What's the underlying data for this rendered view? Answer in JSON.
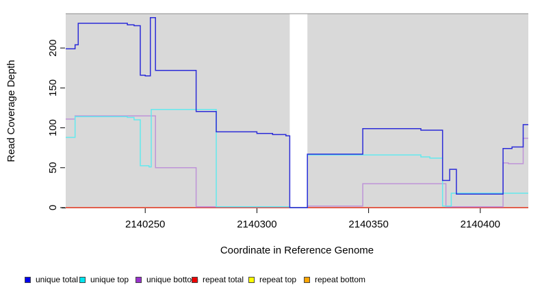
{
  "figure": {
    "background": "#FFFFFF"
  },
  "axes": {
    "x_label": "Coordinate in Reference Genome",
    "y_label": "Read Coverage Depth",
    "x_ticks": [
      {
        "value": 2140250,
        "label": "2140250"
      },
      {
        "value": 2140300,
        "label": "2140300"
      },
      {
        "value": 2140350,
        "label": "2140350"
      },
      {
        "value": 2140400,
        "label": "2140400"
      }
    ],
    "y_ticks": [
      {
        "value": 0,
        "label": "0"
      },
      {
        "value": 50,
        "label": "50"
      },
      {
        "value": 100,
        "label": "100"
      },
      {
        "value": 150,
        "label": "150"
      },
      {
        "value": 200,
        "label": "200"
      }
    ]
  },
  "chart_data": {
    "type": "line",
    "title": "",
    "xlabel": "Coordinate in Reference Genome",
    "ylabel": "Read Coverage Depth",
    "xlim": [
      2140214.4,
      2140421.5
    ],
    "ylim": [
      0,
      243
    ],
    "grid": false,
    "legend_position": "bottom",
    "plot_background": "#D9D9D9",
    "plot_top_border_color": "#8C8C8C",
    "gap_region": {
      "x_start": 2140314.7,
      "x_end": 2140322.6,
      "color": "#FFFFFF"
    },
    "line_style": "step",
    "series": [
      {
        "name": "unique total",
        "color": "#2B2BD8",
        "legend_color": "#0000EE",
        "points": [
          [
            2140214.4,
            199
          ],
          [
            2140218.6,
            199
          ],
          [
            2140218.6,
            204
          ],
          [
            2140220,
            204
          ],
          [
            2140220,
            231
          ],
          [
            2140242,
            231
          ],
          [
            2140242,
            229
          ],
          [
            2140245,
            229
          ],
          [
            2140245,
            228
          ],
          [
            2140247.8,
            228
          ],
          [
            2140247.8,
            166
          ],
          [
            2140250,
            166
          ],
          [
            2140250,
            165
          ],
          [
            2140252.3,
            165
          ],
          [
            2140252.3,
            238
          ],
          [
            2140254.6,
            238
          ],
          [
            2140254.6,
            172
          ],
          [
            2140272.8,
            172
          ],
          [
            2140272.8,
            120.5
          ],
          [
            2140281.8,
            120.5
          ],
          [
            2140281.8,
            95
          ],
          [
            2140300,
            95
          ],
          [
            2140300,
            93
          ],
          [
            2140307,
            93
          ],
          [
            2140307,
            91.5
          ],
          [
            2140313,
            91.5
          ],
          [
            2140313,
            90
          ],
          [
            2140314.7,
            90
          ],
          [
            2140314.7,
            0
          ],
          [
            2140322.6,
            0
          ],
          [
            2140322.6,
            67
          ],
          [
            2140347.4,
            67
          ],
          [
            2140347.4,
            99
          ],
          [
            2140373.4,
            99
          ],
          [
            2140373.4,
            97
          ],
          [
            2140383.1,
            97
          ],
          [
            2140383.1,
            34
          ],
          [
            2140386.3,
            34
          ],
          [
            2140386.3,
            48
          ],
          [
            2140389.3,
            48
          ],
          [
            2140389.3,
            17
          ],
          [
            2140410.2,
            17
          ],
          [
            2140410.2,
            74
          ],
          [
            2140414.2,
            74
          ],
          [
            2140414.2,
            76
          ],
          [
            2140419.2,
            76
          ],
          [
            2140419.2,
            104
          ],
          [
            2140421.5,
            104
          ]
        ]
      },
      {
        "name": "unique top",
        "color": "#63E9EE",
        "legend_color": "#00E5EE",
        "points": [
          [
            2140214.4,
            88
          ],
          [
            2140218.6,
            88
          ],
          [
            2140218.6,
            114
          ],
          [
            2140242,
            114
          ],
          [
            2140242,
            113
          ],
          [
            2140245,
            113
          ],
          [
            2140245,
            110
          ],
          [
            2140247.8,
            110
          ],
          [
            2140247.8,
            52.5
          ],
          [
            2140251.7,
            52.5
          ],
          [
            2140251.7,
            51
          ],
          [
            2140252.7,
            51
          ],
          [
            2140252.7,
            123
          ],
          [
            2140281.8,
            123
          ],
          [
            2140281.8,
            1
          ],
          [
            2140314.7,
            1
          ],
          [
            2140314.7,
            0
          ],
          [
            2140322.6,
            0
          ],
          [
            2140322.6,
            66
          ],
          [
            2140373.4,
            66
          ],
          [
            2140373.4,
            63.5
          ],
          [
            2140377.4,
            63.5
          ],
          [
            2140377.4,
            62
          ],
          [
            2140383.1,
            62
          ],
          [
            2140383.1,
            2
          ],
          [
            2140387,
            2
          ],
          [
            2140387,
            18
          ],
          [
            2140421.5,
            18
          ]
        ]
      },
      {
        "name": "unique bottom",
        "color": "#BE93D8",
        "legend_color": "#9932CC",
        "points": [
          [
            2140214.4,
            111
          ],
          [
            2140218.6,
            111
          ],
          [
            2140218.6,
            115
          ],
          [
            2140254.6,
            115
          ],
          [
            2140254.6,
            50
          ],
          [
            2140272.8,
            50
          ],
          [
            2140272.8,
            1
          ],
          [
            2140314.7,
            1
          ],
          [
            2140314.7,
            0
          ],
          [
            2140322.6,
            0
          ],
          [
            2140322.6,
            2
          ],
          [
            2140347.4,
            2
          ],
          [
            2140347.4,
            30
          ],
          [
            2140384.6,
            30
          ],
          [
            2140384.6,
            1
          ],
          [
            2140410.2,
            1
          ],
          [
            2140410.2,
            56
          ],
          [
            2140412.6,
            56
          ],
          [
            2140412.6,
            55
          ],
          [
            2140419.2,
            55
          ],
          [
            2140419.2,
            87
          ],
          [
            2140421.5,
            87
          ]
        ]
      },
      {
        "name": "repeat total",
        "color": "#E23B5C",
        "legend_color": "#EE0000",
        "points": [
          [
            2140214.4,
            0
          ],
          [
            2140421.5,
            0
          ]
        ]
      },
      {
        "name": "repeat top",
        "color": "#FFFF00",
        "legend_color": "#FFFF00",
        "points": [
          [
            2140214.4,
            0
          ],
          [
            2140421.5,
            0
          ]
        ]
      },
      {
        "name": "repeat bottom",
        "color": "#FFA200",
        "legend_color": "#FFA500",
        "points": [
          [
            2140214.4,
            0
          ],
          [
            2140421.5,
            0
          ]
        ]
      }
    ]
  },
  "legend": {
    "items": [
      {
        "label": "unique total",
        "color": "#0000EE"
      },
      {
        "label": "unique top",
        "color": "#00E5EE"
      },
      {
        "label": "unique bottom",
        "color": "#9932CC"
      },
      {
        "label": "repeat total",
        "color": "#EE0000"
      },
      {
        "label": "repeat top",
        "color": "#FFFF00"
      },
      {
        "label": "repeat bottom",
        "color": "#FFA500"
      }
    ],
    "item_x": [
      36,
      116,
      198,
      280,
      363,
      444
    ]
  }
}
